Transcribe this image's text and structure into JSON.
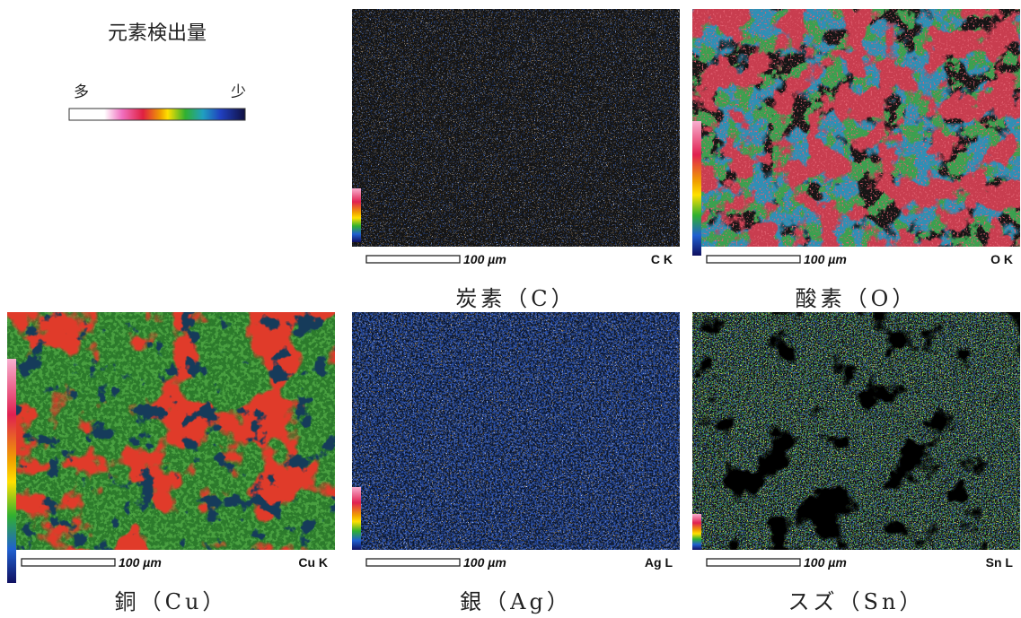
{
  "legend": {
    "title": "元素検出量",
    "high": "多",
    "low": "少"
  },
  "panels": [
    {
      "scale": "100 µm",
      "line": "C K",
      "caption": "炭素（C）"
    },
    {
      "scale": "100 µm",
      "line": "O K",
      "caption": "酸素（O）"
    },
    {
      "scale": "100 µm",
      "line": "Cu K",
      "caption": "銅（Cu）"
    },
    {
      "scale": "100 µm",
      "line": "Ag L",
      "caption": "銀（Ag）"
    },
    {
      "scale": "100 µm",
      "line": "Sn L",
      "caption": "スズ（Sn）"
    }
  ]
}
